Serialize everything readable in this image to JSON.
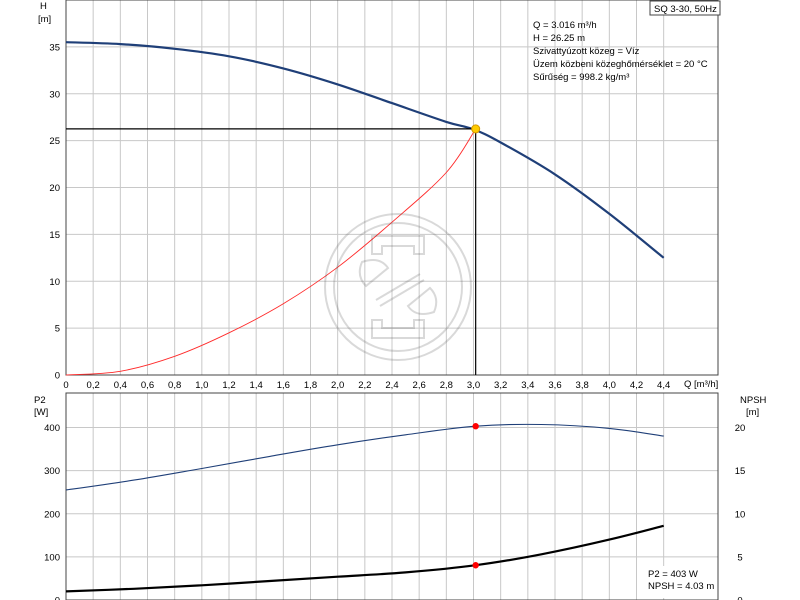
{
  "product_label": "SQ 3-30, 50Hz",
  "info": {
    "lines": [
      "Q = 3.016 m³/h",
      "H = 26.25 m",
      "Szivattyúzott közeg = Víz",
      "Üzem közbeni közeghőmérséklet = 20 °C",
      "Sűrűség = 998.2 kg/m³"
    ]
  },
  "lower_info": {
    "lines": [
      "P2 = 403 W",
      "NPSH = 4.03 m"
    ]
  },
  "colors": {
    "pump_curve": "#1f3f78",
    "system_curve": "#ff2a2a",
    "p2_curve": "#1f3f78",
    "npsh_curve": "#000000",
    "duty_point_upper": "#ffcc00",
    "duty_point_lower": "#ff0000",
    "grid": "#c8c8c8"
  },
  "chart_data": [
    {
      "type": "line",
      "xlabel": "Q [m³/h]",
      "ylabel": "H\n[m]",
      "xlim": [
        0,
        4.8
      ],
      "ylim": [
        0,
        40
      ],
      "x_ticks": [
        "0",
        "0,2",
        "0,4",
        "0,6",
        "0,8",
        "1,0",
        "1,2",
        "1,4",
        "1,6",
        "1,8",
        "2,0",
        "2,2",
        "2,4",
        "2,6",
        "2,8",
        "3,0",
        "3,2",
        "3,4",
        "3,6",
        "3,8",
        "4,0",
        "4,2",
        "4,4"
      ],
      "y_ticks": [
        "0",
        "5",
        "10",
        "15",
        "20",
        "25",
        "30",
        "35"
      ],
      "series": [
        {
          "role": "pump-curve",
          "x": [
            0,
            0.4,
            0.8,
            1.2,
            1.6,
            2.0,
            2.4,
            2.8,
            3.0,
            3.2,
            3.6,
            4.0,
            4.4
          ],
          "y": [
            35.5,
            35.3,
            34.8,
            34.0,
            32.7,
            31.0,
            29.0,
            27.0,
            26.2,
            24.8,
            21.4,
            17.2,
            12.5
          ]
        },
        {
          "role": "system-curve",
          "x": [
            0,
            0.4,
            0.8,
            1.2,
            1.6,
            2.0,
            2.4,
            2.8,
            3.016
          ],
          "y": [
            0,
            0.4,
            2.0,
            4.5,
            7.6,
            11.5,
            16.3,
            21.6,
            26.25
          ]
        }
      ],
      "duty_point": {
        "x": 3.016,
        "y": 26.25
      }
    },
    {
      "type": "line",
      "ylabel_left": "P2\n[W]",
      "ylabel_right": "NPSH\n[m]",
      "xlim": [
        0,
        4.8
      ],
      "ylim_left": [
        0,
        480
      ],
      "ylim_right": [
        0,
        24
      ],
      "y_ticks_left": [
        "0",
        "100",
        "200",
        "300",
        "400"
      ],
      "y_ticks_right": [
        "0",
        "5",
        "10",
        "15",
        "20"
      ],
      "series": [
        {
          "role": "p2",
          "x": [
            0,
            0.5,
            1.0,
            1.5,
            2.0,
            2.5,
            3.016,
            3.5,
            4.0,
            4.4
          ],
          "y": [
            255,
            278,
            305,
            333,
            360,
            383,
            403,
            407,
            398,
            380
          ]
        },
        {
          "role": "npsh",
          "x": [
            0,
            0.5,
            1.0,
            1.5,
            2.0,
            2.5,
            3.016,
            3.5,
            4.0,
            4.4
          ],
          "y": [
            1.0,
            1.3,
            1.7,
            2.2,
            2.7,
            3.2,
            4.03,
            5.3,
            7.0,
            8.6
          ]
        }
      ],
      "duty_points": [
        {
          "series": "p2",
          "x": 3.016,
          "y": 403
        },
        {
          "series": "npsh",
          "x": 3.016,
          "y": 4.03
        }
      ]
    }
  ]
}
